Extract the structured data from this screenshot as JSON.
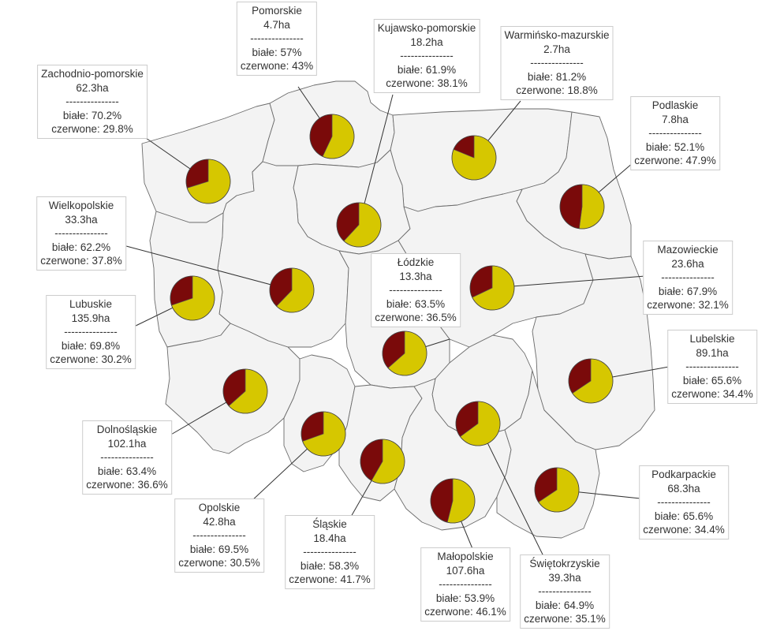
{
  "colors": {
    "region_fill": "#f3f3f3",
    "region_border": "#6b6b6b",
    "biale": "#d6c700",
    "czerwone": "#7a0a0a"
  },
  "chart_data": {
    "type": "pie",
    "separator": "---------------",
    "label_biale": "białe: ",
    "label_czerwone": "czerwone: ",
    "regions": [
      {
        "name": "Zachodnio-pomorskie",
        "area": "62.3ha",
        "biale": 70.2,
        "czerwone": 29.8,
        "biale_text": "70.2%",
        "czerwone_text": "29.8%"
      },
      {
        "name": "Pomorskie",
        "area": "4.7ha",
        "biale": 57,
        "czerwone": 43,
        "biale_text": "57%",
        "czerwone_text": "43%"
      },
      {
        "name": "Kujawsko-pomorskie",
        "area": "18.2ha",
        "biale": 61.9,
        "czerwone": 38.1,
        "biale_text": "61.9%",
        "czerwone_text": "38.1%"
      },
      {
        "name": "Warmińsko-mazurskie",
        "area": "2.7ha",
        "biale": 81.2,
        "czerwone": 18.8,
        "biale_text": "81.2%",
        "czerwone_text": "18.8%"
      },
      {
        "name": "Podlaskie",
        "area": "7.8ha",
        "biale": 52.1,
        "czerwone": 47.9,
        "biale_text": "52.1%",
        "czerwone_text": "47.9%"
      },
      {
        "name": "Wielkopolskie",
        "area": "33.3ha",
        "biale": 62.2,
        "czerwone": 37.8,
        "biale_text": "62.2%",
        "czerwone_text": "37.8%"
      },
      {
        "name": "Mazowieckie",
        "area": "23.6ha",
        "biale": 67.9,
        "czerwone": 32.1,
        "biale_text": "67.9%",
        "czerwone_text": "32.1%"
      },
      {
        "name": "Łódzkie",
        "area": "13.3ha",
        "biale": 63.5,
        "czerwone": 36.5,
        "biale_text": "63.5%",
        "czerwone_text": "36.5%"
      },
      {
        "name": "Lubuskie",
        "area": "135.9ha",
        "biale": 69.8,
        "czerwone": 30.2,
        "biale_text": "69.8%",
        "czerwone_text": "30.2%"
      },
      {
        "name": "Lubelskie",
        "area": "89.1ha",
        "biale": 65.6,
        "czerwone": 34.4,
        "biale_text": "65.6%",
        "czerwone_text": "34.4%"
      },
      {
        "name": "Dolnośląskie",
        "area": "102.1ha",
        "biale": 63.4,
        "czerwone": 36.6,
        "biale_text": "63.4%",
        "czerwone_text": "36.6%"
      },
      {
        "name": "Podkarpackie",
        "area": "68.3ha",
        "biale": 65.6,
        "czerwone": 34.4,
        "biale_text": "65.6%",
        "czerwone_text": "34.4%"
      },
      {
        "name": "Opolskie",
        "area": "42.8ha",
        "biale": 69.5,
        "czerwone": 30.5,
        "biale_text": "69.5%",
        "czerwone_text": "30.5%"
      },
      {
        "name": "Śląskie",
        "area": "18.4ha",
        "biale": 58.3,
        "czerwone": 41.7,
        "biale_text": "58.3%",
        "czerwone_text": "41.7%"
      },
      {
        "name": "Małopolskie",
        "area": "107.6ha",
        "biale": 53.9,
        "czerwone": 46.1,
        "biale_text": "53.9%",
        "czerwone_text": "46.1%"
      },
      {
        "name": "Świętokrzyskie",
        "area": "39.3ha",
        "biale": 64.9,
        "czerwone": 35.1,
        "biale_text": "64.9%",
        "czerwone_text": "35.1%"
      }
    ]
  }
}
